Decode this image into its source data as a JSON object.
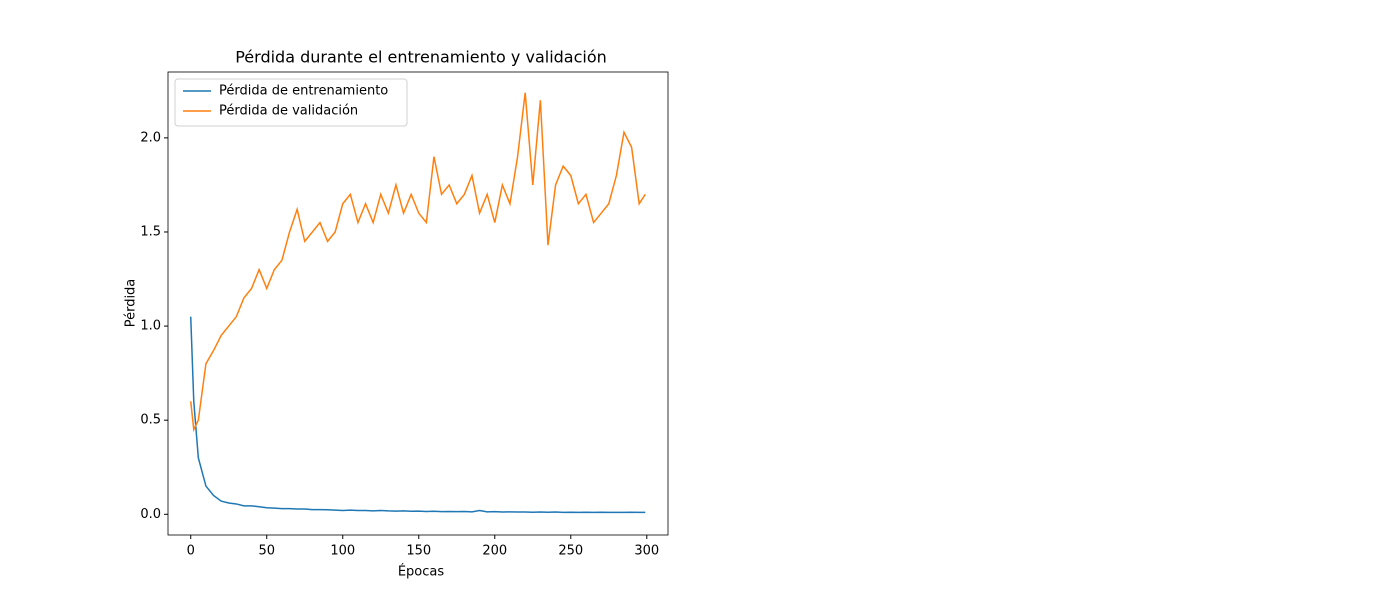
{
  "chart_data": {
    "type": "line",
    "title": "Pérdida durante el entrenamiento y validación",
    "x_label": "Épocas",
    "y_label": "Pérdida",
    "x": [
      0,
      2,
      5,
      10,
      15,
      20,
      25,
      30,
      35,
      40,
      45,
      50,
      55,
      60,
      65,
      70,
      75,
      80,
      85,
      90,
      95,
      100,
      105,
      110,
      115,
      120,
      125,
      130,
      135,
      140,
      145,
      150,
      155,
      160,
      165,
      170,
      175,
      180,
      185,
      190,
      195,
      200,
      205,
      210,
      215,
      220,
      225,
      230,
      235,
      240,
      245,
      250,
      255,
      260,
      265,
      270,
      275,
      280,
      285,
      290,
      295,
      299
    ],
    "series": [
      {
        "name": "Pérdida de entrenamiento",
        "color": "#1f77b4",
        "values": [
          1.05,
          0.6,
          0.3,
          0.15,
          0.1,
          0.07,
          0.06,
          0.055,
          0.045,
          0.045,
          0.04,
          0.035,
          0.033,
          0.03,
          0.03,
          0.028,
          0.028,
          0.025,
          0.025,
          0.024,
          0.022,
          0.02,
          0.022,
          0.02,
          0.02,
          0.018,
          0.02,
          0.018,
          0.017,
          0.018,
          0.016,
          0.017,
          0.015,
          0.016,
          0.014,
          0.015,
          0.014,
          0.015,
          0.013,
          0.02,
          0.013,
          0.014,
          0.012,
          0.013,
          0.012,
          0.012,
          0.011,
          0.012,
          0.011,
          0.012,
          0.01,
          0.011,
          0.01,
          0.011,
          0.01,
          0.011,
          0.01,
          0.01,
          0.01,
          0.011,
          0.01,
          0.01
        ]
      },
      {
        "name": "Pérdida de validación",
        "color": "#ff7f0e",
        "values": [
          0.6,
          0.45,
          0.5,
          0.8,
          0.87,
          0.95,
          1.0,
          1.05,
          1.15,
          1.2,
          1.3,
          1.2,
          1.3,
          1.35,
          1.5,
          1.62,
          1.45,
          1.5,
          1.55,
          1.45,
          1.5,
          1.65,
          1.7,
          1.55,
          1.65,
          1.55,
          1.7,
          1.6,
          1.75,
          1.6,
          1.7,
          1.6,
          1.55,
          1.9,
          1.7,
          1.75,
          1.65,
          1.7,
          1.8,
          1.6,
          1.7,
          1.55,
          1.75,
          1.65,
          1.9,
          2.24,
          1.75,
          2.2,
          1.43,
          1.75,
          1.85,
          1.8,
          1.65,
          1.7,
          1.55,
          1.6,
          1.65,
          1.8,
          2.03,
          1.95,
          1.65,
          1.7
        ]
      }
    ],
    "xlim": [
      -14.95,
      313.95
    ],
    "xticks": [
      0,
      50,
      100,
      150,
      200,
      250,
      300
    ],
    "ylim": [
      -0.11,
      2.35
    ],
    "yticks": [
      {
        "value": 0,
        "label": "0.0"
      },
      0.5,
      {
        "value": 1,
        "label": "1.0"
      },
      1.5,
      {
        "value": 2,
        "label": "2.0"
      }
    ],
    "legend": "upper left"
  }
}
